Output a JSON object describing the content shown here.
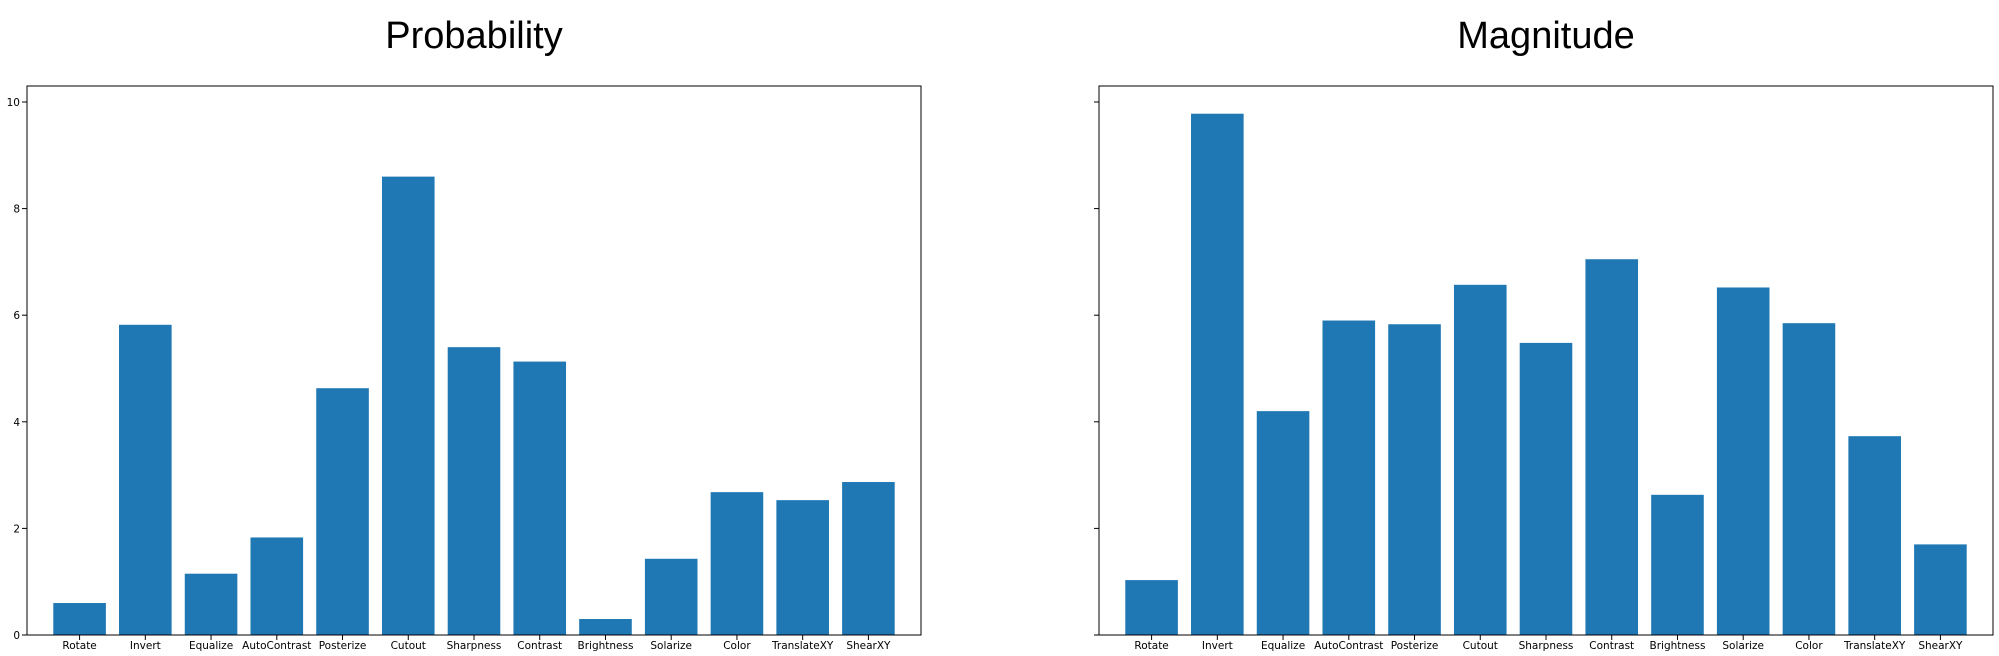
{
  "chart_data": [
    {
      "type": "bar",
      "title": "Probability",
      "xlabel": "",
      "ylabel": "",
      "ylim": [
        0,
        10.3
      ],
      "yticks": [
        0,
        2,
        4,
        6,
        8,
        10
      ],
      "categories": [
        "Rotate",
        "Invert",
        "Equalize",
        "AutoContrast",
        "Posterize",
        "Cutout",
        "Sharpness",
        "Contrast",
        "Brightness",
        "Solarize",
        "Color",
        "TranslateXY",
        "ShearXY"
      ],
      "values": [
        0.6,
        5.82,
        1.15,
        1.83,
        4.63,
        8.6,
        5.4,
        5.13,
        0.3,
        1.43,
        2.68,
        2.53,
        2.87
      ],
      "color": "#1f77b4"
    },
    {
      "type": "bar",
      "title": "Magnitude",
      "xlabel": "",
      "ylabel": "",
      "ylim": [
        0,
        10.3
      ],
      "yticks": [
        0,
        2,
        4,
        6,
        8,
        10
      ],
      "show_ytick_labels": false,
      "categories": [
        "Rotate",
        "Invert",
        "Equalize",
        "AutoContrast",
        "Posterize",
        "Cutout",
        "Sharpness",
        "Contrast",
        "Brightness",
        "Solarize",
        "Color",
        "TranslateXY",
        "ShearXY"
      ],
      "values": [
        1.03,
        9.78,
        4.2,
        5.9,
        5.83,
        6.57,
        5.48,
        7.05,
        2.63,
        6.52,
        5.85,
        3.73,
        1.7
      ],
      "color": "#1f77b4"
    }
  ]
}
